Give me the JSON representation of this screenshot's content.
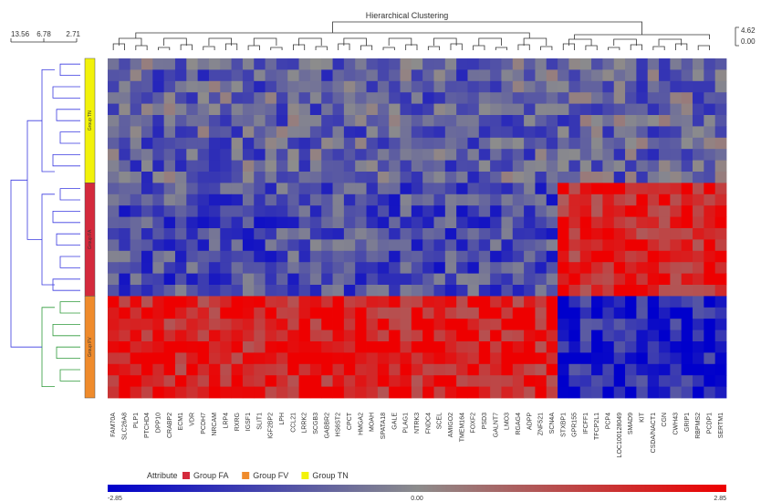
{
  "chart_data": {
    "type": "heatmap",
    "title": "Hierarchical Clustering",
    "col_scale_labels": [
      "4.62",
      "0.00"
    ],
    "row_scale_labels": [
      "13.56",
      "6.78",
      "2.71"
    ],
    "groups": [
      {
        "name": "Group TN",
        "color": "#f2f20a",
        "label": "Group TN",
        "rows": 11
      },
      {
        "name": "Group FA",
        "color": "#d42a3c",
        "label": "Group FA",
        "rows": 10
      },
      {
        "name": "Group FV",
        "color": "#ef8b2c",
        "label": "Group FV",
        "rows": 9
      }
    ],
    "columns": [
      "FAM70A",
      "SLC26A8",
      "PLP1",
      "PTCHD4",
      "DPP10",
      "CRABP2",
      "ECM1",
      "VDR",
      "PCDH7",
      "NRCAM",
      "LRP4",
      "RXRG",
      "IGSF1",
      "SLIT1",
      "IGF2BP2",
      "LPH",
      "CCL21",
      "LRRK2",
      "SCGB3",
      "GABBR2",
      "HS6ST2",
      "CPCT",
      "HMGA2",
      "MOAH",
      "SPATA18",
      "GALE",
      "PLAG1",
      "NTRK3",
      "FNDC4",
      "SCEL",
      "AMIGO2",
      "TMEM164",
      "FOXF2",
      "PSD3",
      "GALNT7",
      "LMO3",
      "RGAG4",
      "ADPP",
      "ZNF521",
      "SCN4A",
      "STXBP1",
      "GPR155",
      "IFCFF1",
      "TFCP2L1",
      "PCP4",
      "LOC100128049",
      "SMAD9",
      "KIT",
      "CSDA/NACT1",
      "CGN",
      "CWH43",
      "GRIP1",
      "RBPMS2",
      "PCDP1",
      "SERTM1"
    ],
    "col_split": 40,
    "legend": {
      "title": "Attribute",
      "items": [
        {
          "label": "Group FA",
          "color": "#d42a3c"
        },
        {
          "label": "Group FV",
          "color": "#ef8b2c"
        },
        {
          "label": "Group TN",
          "color": "#f2f20a"
        }
      ]
    },
    "colorbar": {
      "min": -2.85,
      "mid": 0.0,
      "max": 2.85,
      "labels": [
        "-2.85",
        "0.00",
        "2.85"
      ],
      "colors": [
        "#0000cc",
        "#8c8c8c",
        "#ee0000"
      ]
    },
    "pattern_means": [
      {
        "rows": "Group TN",
        "cols_left": -0.9,
        "cols_right": -0.8
      },
      {
        "rows": "Group FA",
        "cols_left": -1.3,
        "cols_right": 2.2
      },
      {
        "rows": "Group FV",
        "cols_left": 2.3,
        "cols_right": -2.2
      }
    ],
    "grid": false
  }
}
